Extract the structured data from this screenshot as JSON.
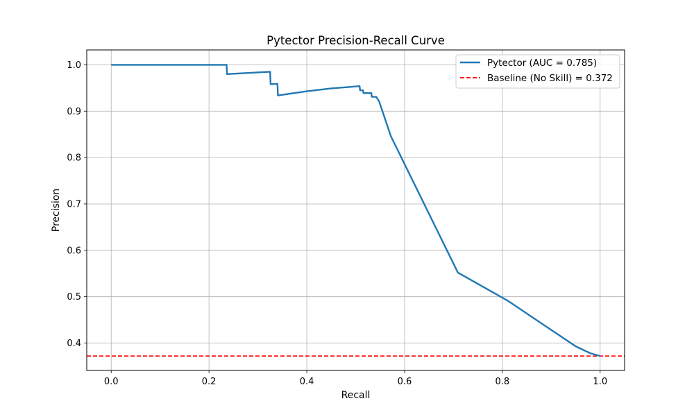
{
  "chart_data": {
    "type": "line",
    "title": "Pytector Precision-Recall Curve",
    "xlabel": "Recall",
    "ylabel": "Precision",
    "xlim": [
      -0.05,
      1.05
    ],
    "ylim": [
      0.341,
      1.032
    ],
    "grid": true,
    "legend_position": "top-right",
    "x_ticks": [
      0.0,
      0.2,
      0.4,
      0.6,
      0.8,
      1.0
    ],
    "x_tick_labels": [
      "0.0",
      "0.2",
      "0.4",
      "0.6",
      "0.8",
      "1.0"
    ],
    "y_ticks": [
      0.4,
      0.5,
      0.6,
      0.7,
      0.8,
      0.9,
      1.0
    ],
    "y_tick_labels": [
      "0.4",
      "0.5",
      "0.6",
      "0.7",
      "0.8",
      "0.9",
      "1.0"
    ],
    "series": [
      {
        "name": "Pytector (AUC = 0.785)",
        "color": "#1f77b4",
        "style": "solid",
        "x": [
          0.0,
          0.236,
          0.237,
          0.325,
          0.326,
          0.34,
          0.341,
          0.4,
          0.45,
          0.508,
          0.509,
          0.515,
          0.516,
          0.532,
          0.533,
          0.542,
          0.548,
          0.572,
          0.709,
          0.81,
          0.95,
          0.98,
          1.0
        ],
        "y": [
          1.0,
          1.0,
          0.98,
          0.985,
          0.958,
          0.959,
          0.934,
          0.943,
          0.949,
          0.954,
          0.945,
          0.945,
          0.939,
          0.939,
          0.931,
          0.931,
          0.921,
          0.846,
          0.552,
          0.492,
          0.393,
          0.378,
          0.372
        ]
      },
      {
        "name": "Baseline (No Skill) = 0.372",
        "color": "#ff0000",
        "style": "dashed",
        "y_constant": 0.372
      }
    ]
  }
}
